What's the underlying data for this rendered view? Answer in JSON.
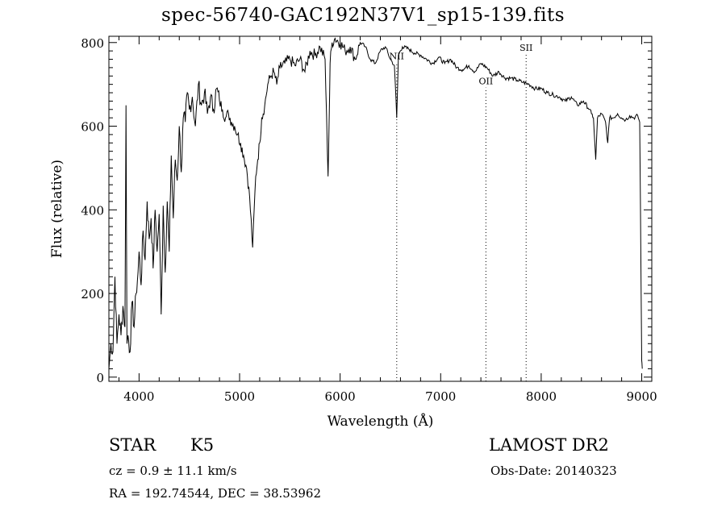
{
  "chart_data": {
    "type": "line",
    "title": "spec-56740-GAC192N37V1_sp15-139.fits",
    "xlabel": "Wavelength (Å)",
    "ylabel": "Flux (relative)",
    "xlim": [
      3700,
      9100
    ],
    "ylim": [
      -10,
      815
    ],
    "xticks": [
      4000,
      5000,
      6000,
      7000,
      8000,
      9000
    ],
    "yticks": [
      0,
      200,
      400,
      600,
      800
    ],
    "series": [
      {
        "x": [
          3700,
          3720,
          3740,
          3760,
          3780,
          3800,
          3820,
          3840,
          3860,
          3870,
          3880,
          3890,
          3910,
          3930,
          3950,
          3970,
          3990,
          4000,
          4020,
          4040,
          4060,
          4080,
          4100,
          4120,
          4140,
          4160,
          4180,
          4200,
          4220,
          4240,
          4260,
          4280,
          4300,
          4320,
          4340,
          4360,
          4380,
          4400,
          4420,
          4440,
          4460,
          4480,
          4500,
          4530,
          4560,
          4590,
          4620,
          4650,
          4680,
          4710,
          4740,
          4770,
          4800,
          4830,
          4860,
          4890,
          4920,
          4950,
          4980,
          5010,
          5040,
          5070,
          5100,
          5130,
          5160,
          5180,
          5200,
          5220,
          5250,
          5280,
          5310,
          5340,
          5370,
          5400,
          5450,
          5500,
          5550,
          5600,
          5650,
          5700,
          5750,
          5800,
          5850,
          5880,
          5890,
          5900,
          5920,
          5950,
          6000,
          6050,
          6100,
          6150,
          6200,
          6250,
          6300,
          6350,
          6400,
          6450,
          6500,
          6540,
          6563,
          6580,
          6620,
          6680,
          6740,
          6800,
          6860,
          6920,
          6980,
          7040,
          7100,
          7160,
          7220,
          7280,
          7340,
          7400,
          7460,
          7520,
          7580,
          7640,
          7700,
          7760,
          7820,
          7880,
          7940,
          8000,
          8060,
          8120,
          8180,
          8240,
          8300,
          8360,
          8420,
          8480,
          8500,
          8520,
          8542,
          8560,
          8600,
          8640,
          8662,
          8680,
          8720,
          8760,
          8800,
          8840,
          8880,
          8920,
          8960,
          8980,
          9000,
          9005
        ],
        "values": [
          20,
          80,
          60,
          240,
          80,
          150,
          100,
          170,
          120,
          650,
          80,
          100,
          60,
          180,
          120,
          200,
          250,
          300,
          220,
          350,
          280,
          420,
          330,
          380,
          260,
          400,
          300,
          390,
          150,
          410,
          250,
          420,
          300,
          530,
          380,
          520,
          470,
          600,
          490,
          620,
          610,
          680,
          640,
          670,
          600,
          700,
          650,
          680,
          630,
          670,
          640,
          690,
          660,
          640,
          620,
          630,
          610,
          600,
          580,
          560,
          530,
          500,
          430,
          310,
          480,
          520,
          560,
          620,
          650,
          700,
          720,
          730,
          700,
          740,
          750,
          760,
          745,
          760,
          730,
          780,
          770,
          790,
          760,
          480,
          600,
          750,
          800,
          810,
          800,
          780,
          790,
          760,
          800,
          790,
          760,
          750,
          780,
          790,
          760,
          745,
          620,
          770,
          790,
          785,
          775,
          770,
          760,
          750,
          765,
          750,
          760,
          740,
          735,
          745,
          730,
          750,
          740,
          720,
          730,
          715,
          715,
          710,
          705,
          700,
          690,
          690,
          680,
          675,
          670,
          660,
          670,
          650,
          660,
          640,
          630,
          620,
          520,
          620,
          630,
          610,
          560,
          620,
          620,
          630,
          620,
          615,
          625,
          620,
          625,
          610,
          40,
          20
        ]
      }
    ],
    "annotations": [
      {
        "label": "NII",
        "x": 6563,
        "label_y": 760
      },
      {
        "label": "OII",
        "x": 7450,
        "label_y": 700
      },
      {
        "label": "SII",
        "x": 7850,
        "label_y": 780
      }
    ]
  },
  "footer": {
    "class_label": "STAR",
    "subclass": "K5",
    "survey": "LAMOST DR2",
    "cz": "cz = 0.9 ± 11.1 km/s",
    "obs_date": "Obs-Date: 20140323",
    "coords": "RA = 192.74544, DEC =  38.53962"
  }
}
